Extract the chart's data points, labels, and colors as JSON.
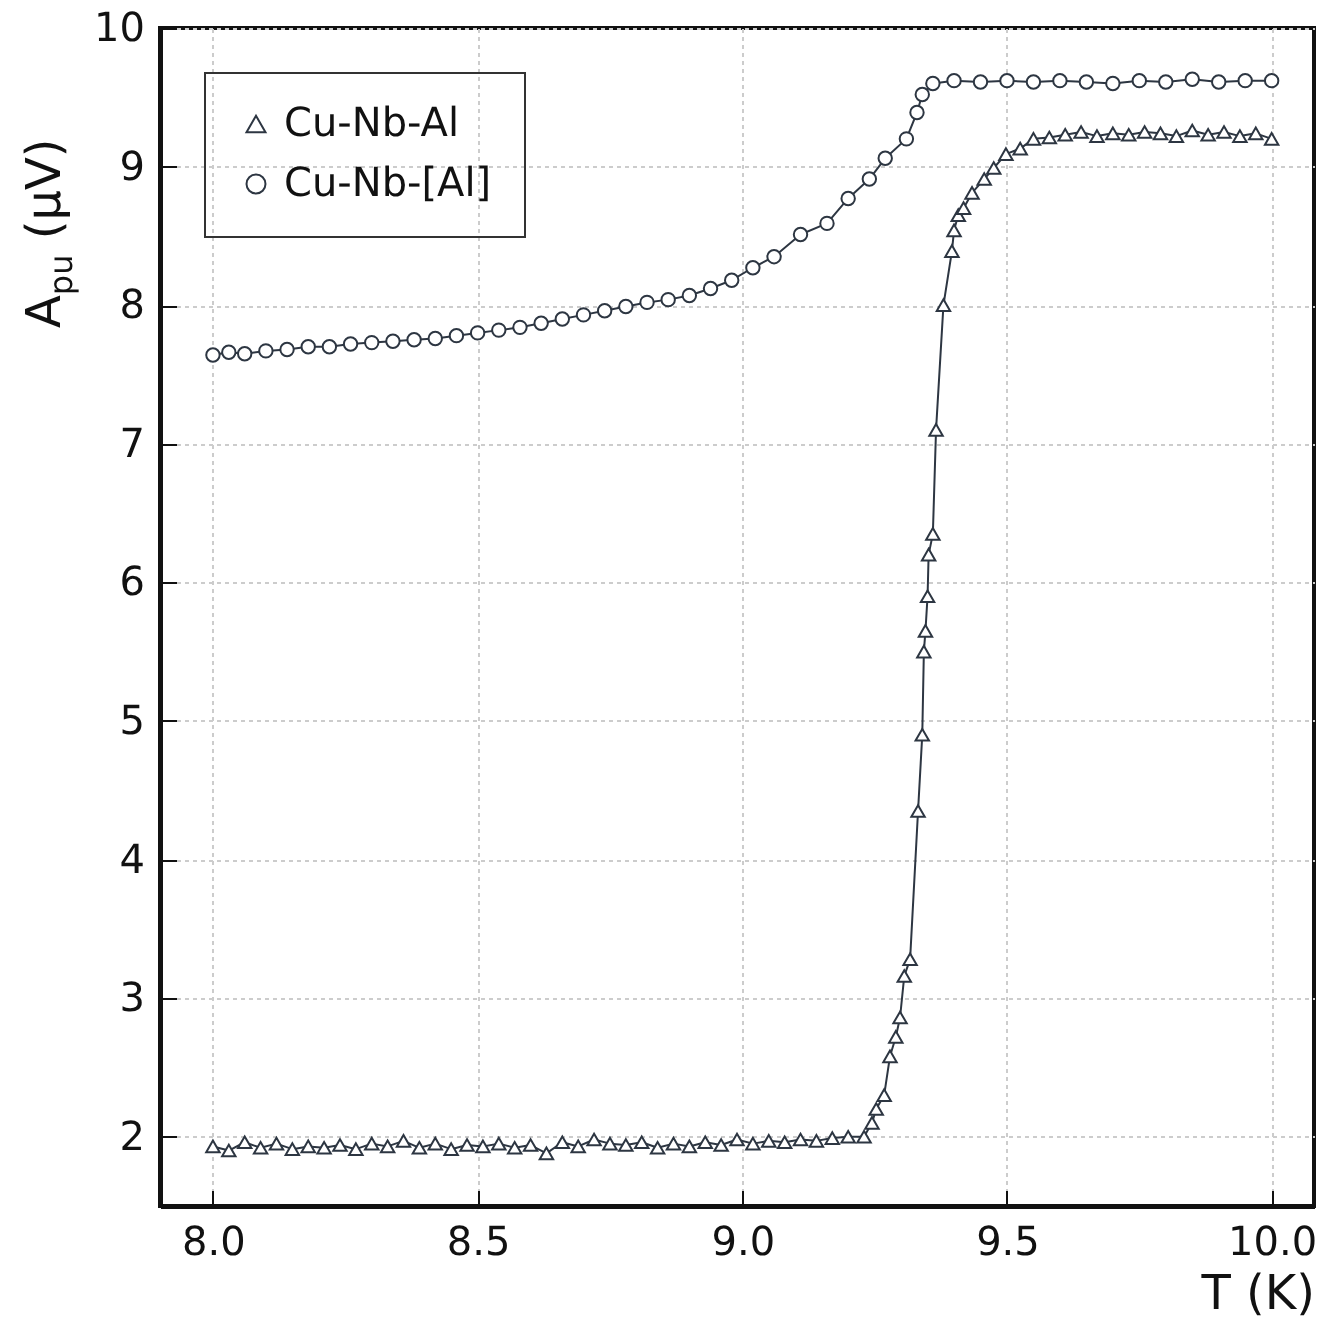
{
  "chart_data": {
    "type": "line",
    "xlabel": "T (K)",
    "ylabel": "A$_{pu}$ (μV)",
    "xlim": [
      7.9,
      10.08
    ],
    "ylim": [
      1.5,
      10
    ],
    "xticks": [
      {
        "value": 8,
        "label": "8.0"
      },
      {
        "value": 8.5,
        "label": "8.5"
      },
      {
        "value": 9,
        "label": "9.0"
      },
      {
        "value": 9.5,
        "label": "9.5"
      },
      {
        "value": 10,
        "label": "10.0"
      }
    ],
    "yticks": [
      2,
      3,
      4,
      5,
      6,
      7,
      8,
      9,
      10
    ],
    "grid": true,
    "legend": "top left",
    "series": [
      {
        "name": "Cu-Nb-Al",
        "color": "#2d3642",
        "marker": "triangle",
        "x": [
          8.0,
          8.03,
          8.06,
          8.09,
          8.12,
          8.15,
          8.18,
          8.21,
          8.24,
          8.27,
          8.3,
          8.33,
          8.36,
          8.39,
          8.42,
          8.45,
          8.48,
          8.51,
          8.54,
          8.57,
          8.6,
          8.63,
          8.66,
          8.69,
          8.72,
          8.75,
          8.78,
          8.81,
          8.84,
          8.87,
          8.9,
          8.93,
          8.96,
          8.99,
          9.02,
          9.05,
          9.08,
          9.11,
          9.14,
          9.17,
          9.2,
          9.23,
          9.245,
          9.253,
          9.268,
          9.279,
          9.29,
          9.298,
          9.306,
          9.317,
          9.332,
          9.34,
          9.343,
          9.346,
          9.35,
          9.352,
          9.36,
          9.366,
          9.38,
          9.396,
          9.4,
          9.408,
          9.418,
          9.434,
          9.457,
          9.475,
          9.498,
          9.525,
          9.55,
          9.58,
          9.61,
          9.64,
          9.67,
          9.7,
          9.73,
          9.76,
          9.79,
          9.82,
          9.85,
          9.88,
          9.91,
          9.94,
          9.97,
          10.0
        ],
        "values": [
          1.93,
          1.9,
          1.96,
          1.92,
          1.95,
          1.91,
          1.93,
          1.92,
          1.94,
          1.91,
          1.95,
          1.93,
          1.97,
          1.92,
          1.95,
          1.91,
          1.94,
          1.93,
          1.95,
          1.92,
          1.94,
          1.88,
          1.96,
          1.93,
          1.98,
          1.95,
          1.94,
          1.96,
          1.92,
          1.95,
          1.93,
          1.96,
          1.94,
          1.98,
          1.95,
          1.97,
          1.96,
          1.98,
          1.97,
          1.99,
          2.0,
          2.0,
          2.1,
          2.2,
          2.3,
          2.58,
          2.72,
          2.86,
          3.16,
          3.28,
          4.35,
          4.9,
          5.5,
          5.65,
          5.9,
          6.2,
          6.35,
          7.1,
          8.0,
          8.39,
          8.54,
          8.65,
          8.7,
          8.81,
          8.91,
          8.99,
          9.09,
          9.13,
          9.2,
          9.21,
          9.23,
          9.25,
          9.22,
          9.24,
          9.23,
          9.25,
          9.24,
          9.22,
          9.26,
          9.23,
          9.25,
          9.22,
          9.24,
          9.2
        ]
      },
      {
        "name": "Cu-Nb-[Al]",
        "color": "#2d3642",
        "marker": "circle",
        "x": [
          8.0,
          8.03,
          8.06,
          8.1,
          8.14,
          8.18,
          8.22,
          8.26,
          8.3,
          8.34,
          8.38,
          8.42,
          8.46,
          8.5,
          8.54,
          8.58,
          8.62,
          8.66,
          8.7,
          8.74,
          8.78,
          8.82,
          8.86,
          8.9,
          8.94,
          8.98,
          9.02,
          9.06,
          9.11,
          9.16,
          9.2,
          9.24,
          9.27,
          9.31,
          9.33,
          9.34,
          9.36,
          9.4,
          9.45,
          9.5,
          9.55,
          9.6,
          9.65,
          9.7,
          9.75,
          9.8,
          9.85,
          9.9,
          9.95,
          10.0
        ],
        "values": [
          7.64,
          7.66,
          7.65,
          7.67,
          7.68,
          7.7,
          7.7,
          7.72,
          7.73,
          7.74,
          7.75,
          7.76,
          7.78,
          7.8,
          7.82,
          7.84,
          7.87,
          7.9,
          7.93,
          7.96,
          7.99,
          8.02,
          8.04,
          8.07,
          8.12,
          8.18,
          8.27,
          8.35,
          8.51,
          8.59,
          8.77,
          8.91,
          9.06,
          9.2,
          9.39,
          9.52,
          9.6,
          9.62,
          9.61,
          9.62,
          9.61,
          9.62,
          9.61,
          9.6,
          9.62,
          9.61,
          9.63,
          9.61,
          9.62,
          9.62
        ]
      }
    ]
  }
}
